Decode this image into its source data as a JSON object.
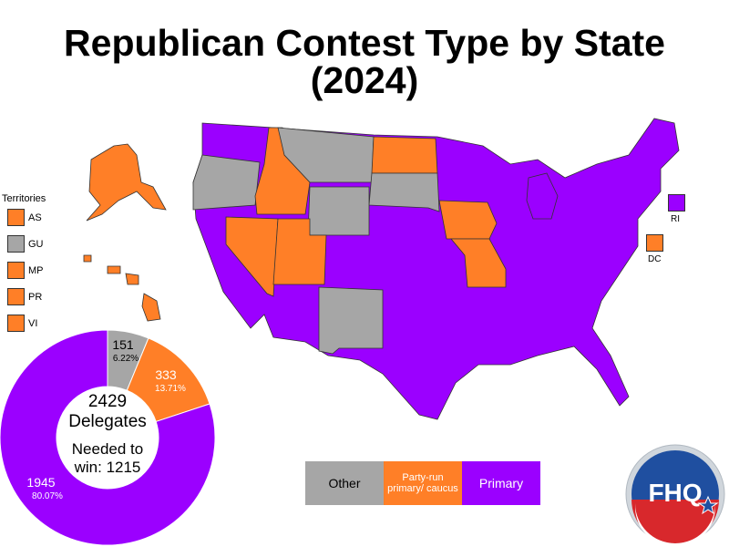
{
  "title_line1": "Republican Contest Type by State",
  "title_line2": "(2024)",
  "colors": {
    "primary": "#9b00ff",
    "party": "#ff7f27",
    "other": "#a6a6a6"
  },
  "territories": {
    "heading": "Territories",
    "items": [
      {
        "code": "AS",
        "type": "party"
      },
      {
        "code": "GU",
        "type": "other"
      },
      {
        "code": "MP",
        "type": "party"
      },
      {
        "code": "PR",
        "type": "party"
      },
      {
        "code": "VI",
        "type": "party"
      }
    ]
  },
  "small_states": {
    "ri": "RI",
    "dc": "DC"
  },
  "legend": {
    "other": "Other",
    "party": "Party-run primary/ caucus",
    "primary": "Primary"
  },
  "chart_data": {
    "type": "pie",
    "center_total": "2429",
    "center_unit": "Delegates",
    "center_needed_line1": "Needed to",
    "center_needed_line2": "win: 1215",
    "slices": [
      {
        "label": "Other",
        "value": 151,
        "percent": "6.22%",
        "color": "#a6a6a6"
      },
      {
        "label": "Party-run primary/caucus",
        "value": 333,
        "percent": "13.71%",
        "color": "#ff7f27"
      },
      {
        "label": "Primary",
        "value": 1945,
        "percent": "80.07%",
        "color": "#9b00ff"
      }
    ]
  },
  "logo": {
    "text": "FHQ"
  }
}
